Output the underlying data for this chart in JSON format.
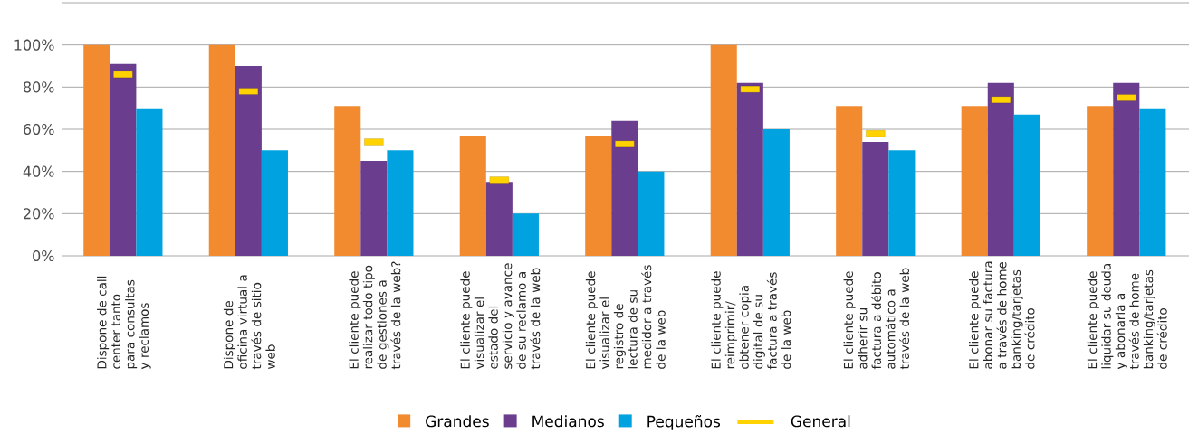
{
  "chart_data": {
    "type": "bar",
    "categories": [
      "Dispone de call center tanto para consultas y reclamos",
      "Dispone de oficina virtual a través de sitio web",
      "El cliente puede realizar todo tipo de gestiones a través de la web?",
      "El cliente puede visualizar el estado del servicio y avance de su reclamo a través de la web",
      "El cliente puede visualizar el registro de lectura de su medidor a través de la web",
      "El cliente puede reimprimir/ obtener copia digital de su factura a través de la web",
      "El cliente puede adherir su factura a débito automático a través de la web",
      "El cliente puede abonar su factura a través de home banking/tarjetas de crédito",
      "El cliente puede liquidar su deuda y abonarla a través de home banking/tarjetas de crédito"
    ],
    "series": [
      {
        "name": "Grandes",
        "color": "#f28a30",
        "values": [
          100,
          100,
          71,
          57,
          57,
          100,
          71,
          71,
          71
        ]
      },
      {
        "name": "Medianos",
        "color": "#6a3d8f",
        "values": [
          91,
          90,
          45,
          35,
          64,
          82,
          54,
          82,
          82
        ]
      },
      {
        "name": "Pequeños",
        "color": "#00a3e0",
        "values": [
          70,
          50,
          50,
          20,
          40,
          60,
          50,
          67,
          70
        ]
      },
      {
        "name": "General",
        "type": "scatter",
        "color": "#ffd200",
        "values": [
          86,
          78,
          54,
          36,
          53,
          79,
          58,
          74,
          75
        ]
      }
    ],
    "ylim": [
      0,
      120
    ],
    "yticks": [
      {
        "value": 0,
        "label": "0%"
      },
      {
        "value": 20,
        "label": "20%"
      },
      {
        "value": 40,
        "label": "40%"
      },
      {
        "value": 60,
        "label": "60%"
      },
      {
        "value": 80,
        "label": "80%"
      },
      {
        "value": 100,
        "label": "100%"
      },
      {
        "value": 120,
        "label": null
      }
    ],
    "grid": "y",
    "legend": "bottom"
  }
}
